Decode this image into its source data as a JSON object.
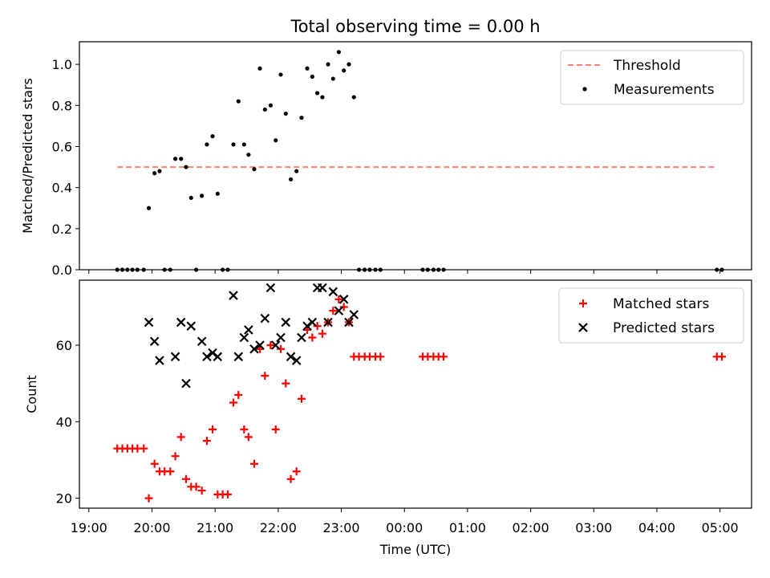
{
  "title": "Total observing time = 0.00 h",
  "chart_data": [
    {
      "type": "scatter",
      "ylabel": "Matched/Predicted stars",
      "ylim": [
        0,
        1.11
      ],
      "yticks": [
        "0.0",
        "0.2",
        "0.4",
        "0.6",
        "0.8",
        "1.0"
      ],
      "ytick_values": [
        0,
        0.2,
        0.4,
        0.6,
        0.8,
        1.0
      ],
      "legend_position": "top-right",
      "threshold": {
        "name": "Threshold",
        "value": 0.5,
        "x_range": [
          19.45,
          28.95
        ],
        "color": "#ff7f7f",
        "style": "dashed"
      },
      "series": [
        {
          "name": "Measurements",
          "color": "#000000",
          "marker": "dot",
          "points": [
            [
              19.45,
              0
            ],
            [
              19.53,
              0
            ],
            [
              19.61,
              0
            ],
            [
              19.69,
              0
            ],
            [
              19.77,
              0
            ],
            [
              19.87,
              0
            ],
            [
              19.95,
              0.3
            ],
            [
              20.04,
              0.47
            ],
            [
              20.12,
              0.48
            ],
            [
              20.2,
              0
            ],
            [
              20.29,
              0
            ],
            [
              20.37,
              0.54
            ],
            [
              20.46,
              0.54
            ],
            [
              20.54,
              0.5
            ],
            [
              20.62,
              0.35
            ],
            [
              20.7,
              0
            ],
            [
              20.79,
              0.36
            ],
            [
              20.87,
              0.61
            ],
            [
              20.96,
              0.65
            ],
            [
              21.04,
              0.37
            ],
            [
              21.12,
              0
            ],
            [
              21.2,
              0
            ],
            [
              21.29,
              0.61
            ],
            [
              21.37,
              0.82
            ],
            [
              21.46,
              0.61
            ],
            [
              21.53,
              0.56
            ],
            [
              21.62,
              0.49
            ],
            [
              21.71,
              0.98
            ],
            [
              21.79,
              0.78
            ],
            [
              21.88,
              0.8
            ],
            [
              21.96,
              0.63
            ],
            [
              22.04,
              0.95
            ],
            [
              22.12,
              0.76
            ],
            [
              22.2,
              0.44
            ],
            [
              22.29,
              0.48
            ],
            [
              22.37,
              0.74
            ],
            [
              22.46,
              0.98
            ],
            [
              22.54,
              0.94
            ],
            [
              22.62,
              0.86
            ],
            [
              22.7,
              0.84
            ],
            [
              22.79,
              1.0
            ],
            [
              22.87,
              0.93
            ],
            [
              22.96,
              1.06
            ],
            [
              23.04,
              0.97
            ],
            [
              23.12,
              1.0
            ],
            [
              23.2,
              0.84
            ],
            [
              23.28,
              0
            ],
            [
              23.37,
              0
            ],
            [
              23.45,
              0
            ],
            [
              23.54,
              0
            ],
            [
              23.62,
              0
            ],
            [
              24.29,
              0
            ],
            [
              24.37,
              0
            ],
            [
              24.46,
              0
            ],
            [
              24.54,
              0
            ],
            [
              24.62,
              0
            ],
            [
              28.95,
              0
            ],
            [
              29.03,
              0
            ]
          ]
        }
      ]
    },
    {
      "type": "scatter",
      "ylabel": "Count",
      "xlabel": "Time (UTC)",
      "ylim": [
        17.4,
        77.0
      ],
      "yticks": [
        "20",
        "40",
        "60"
      ],
      "ytick_values": [
        20,
        40,
        60
      ],
      "xlim": [
        18.85,
        29.5
      ],
      "xticks": [
        "19:00",
        "20:00",
        "21:00",
        "22:00",
        "23:00",
        "00:00",
        "01:00",
        "02:00",
        "03:00",
        "04:00",
        "05:00"
      ],
      "xtick_values": [
        19,
        20,
        21,
        22,
        23,
        24,
        25,
        26,
        27,
        28,
        29
      ],
      "legend_position": "top-right",
      "series": [
        {
          "name": "Matched stars",
          "color": "#ff0000",
          "marker": "plus",
          "points": [
            [
              19.45,
              33
            ],
            [
              19.53,
              33
            ],
            [
              19.61,
              33
            ],
            [
              19.69,
              33
            ],
            [
              19.77,
              33
            ],
            [
              19.87,
              33
            ],
            [
              19.95,
              20
            ],
            [
              20.04,
              29
            ],
            [
              20.12,
              27
            ],
            [
              20.2,
              27
            ],
            [
              20.29,
              27
            ],
            [
              20.37,
              31
            ],
            [
              20.46,
              36
            ],
            [
              20.54,
              25
            ],
            [
              20.62,
              23
            ],
            [
              20.7,
              23
            ],
            [
              20.79,
              22
            ],
            [
              20.87,
              35
            ],
            [
              20.96,
              38
            ],
            [
              21.04,
              21
            ],
            [
              21.12,
              21
            ],
            [
              21.2,
              21
            ],
            [
              21.29,
              45
            ],
            [
              21.37,
              47
            ],
            [
              21.46,
              38
            ],
            [
              21.53,
              36
            ],
            [
              21.62,
              29
            ],
            [
              21.71,
              59
            ],
            [
              21.79,
              52
            ],
            [
              21.88,
              60
            ],
            [
              21.96,
              38
            ],
            [
              22.04,
              59
            ],
            [
              22.12,
              50
            ],
            [
              22.2,
              25
            ],
            [
              22.29,
              27
            ],
            [
              22.37,
              46
            ],
            [
              22.46,
              64
            ],
            [
              22.54,
              62
            ],
            [
              22.62,
              65
            ],
            [
              22.7,
              63
            ],
            [
              22.79,
              66
            ],
            [
              22.87,
              69
            ],
            [
              22.96,
              72
            ],
            [
              23.04,
              70
            ],
            [
              23.12,
              66
            ],
            [
              23.2,
              57
            ],
            [
              23.28,
              57
            ],
            [
              23.37,
              57
            ],
            [
              23.45,
              57
            ],
            [
              23.54,
              57
            ],
            [
              23.62,
              57
            ],
            [
              24.29,
              57
            ],
            [
              24.37,
              57
            ],
            [
              24.46,
              57
            ],
            [
              24.54,
              57
            ],
            [
              24.62,
              57
            ],
            [
              28.95,
              57
            ],
            [
              29.03,
              57
            ]
          ]
        },
        {
          "name": "Predicted stars",
          "color": "#000000",
          "marker": "x",
          "points": [
            [
              19.95,
              66
            ],
            [
              20.04,
              61
            ],
            [
              20.12,
              56
            ],
            [
              20.37,
              57
            ],
            [
              20.46,
              66
            ],
            [
              20.54,
              50
            ],
            [
              20.62,
              65
            ],
            [
              20.79,
              61
            ],
            [
              20.87,
              57
            ],
            [
              20.96,
              58
            ],
            [
              21.04,
              57
            ],
            [
              21.29,
              73
            ],
            [
              21.37,
              57
            ],
            [
              21.46,
              62
            ],
            [
              21.53,
              64
            ],
            [
              21.62,
              59
            ],
            [
              21.71,
              60
            ],
            [
              21.79,
              67
            ],
            [
              21.88,
              75
            ],
            [
              21.96,
              60
            ],
            [
              22.04,
              62
            ],
            [
              22.12,
              66
            ],
            [
              22.2,
              57
            ],
            [
              22.29,
              56
            ],
            [
              22.37,
              62
            ],
            [
              22.46,
              65
            ],
            [
              22.54,
              66
            ],
            [
              22.62,
              75
            ],
            [
              22.7,
              75
            ],
            [
              22.79,
              66
            ],
            [
              22.87,
              74
            ],
            [
              22.96,
              69
            ],
            [
              23.04,
              72
            ],
            [
              23.12,
              66
            ],
            [
              23.2,
              68
            ]
          ]
        }
      ]
    }
  ]
}
